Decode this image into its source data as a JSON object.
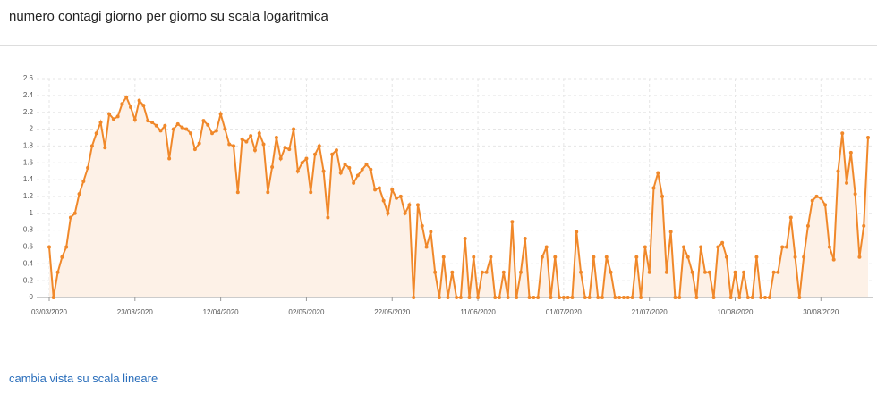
{
  "header": {
    "title": "numero contagi giorno per giorno su scala logaritmica"
  },
  "chart_data": {
    "type": "line",
    "categories": [
      "03/03/2020",
      null,
      null,
      null,
      null,
      null,
      null,
      null,
      null,
      null,
      null,
      null,
      null,
      null,
      null,
      null,
      null,
      null,
      null,
      null,
      "23/03/2020",
      null,
      null,
      null,
      null,
      null,
      null,
      null,
      null,
      null,
      null,
      null,
      null,
      null,
      null,
      null,
      null,
      null,
      null,
      null,
      "12/04/2020",
      null,
      null,
      null,
      null,
      null,
      null,
      null,
      null,
      null,
      null,
      null,
      null,
      null,
      null,
      null,
      null,
      null,
      null,
      null,
      "02/05/2020",
      null,
      null,
      null,
      null,
      null,
      null,
      null,
      null,
      null,
      null,
      null,
      null,
      null,
      null,
      null,
      null,
      null,
      null,
      null,
      "22/05/2020",
      null,
      null,
      null,
      null,
      null,
      null,
      null,
      null,
      null,
      null,
      null,
      null,
      null,
      null,
      null,
      null,
      null,
      null,
      null,
      "11/06/2020",
      null,
      null,
      null,
      null,
      null,
      null,
      null,
      null,
      null,
      null,
      null,
      null,
      null,
      null,
      null,
      null,
      null,
      null,
      null,
      "01/07/2020",
      null,
      null,
      null,
      null,
      null,
      null,
      null,
      null,
      null,
      null,
      null,
      null,
      null,
      null,
      null,
      null,
      null,
      null,
      null,
      "21/07/2020",
      null,
      null,
      null,
      null,
      null,
      null,
      null,
      null,
      null,
      null,
      null,
      null,
      null,
      null,
      null,
      null,
      null,
      null,
      null,
      "10/08/2020",
      null,
      null,
      null,
      null,
      null,
      null,
      null,
      null,
      null,
      null,
      null,
      null,
      null,
      null,
      null,
      null,
      null,
      null,
      null,
      "30/08/2020",
      null,
      null,
      null,
      null,
      null,
      null,
      null,
      null,
      null,
      null,
      null
    ],
    "values": [
      0.6,
      0,
      0.3,
      0.48,
      0.6,
      0.95,
      1.0,
      1.23,
      1.38,
      1.54,
      1.8,
      1.95,
      2.08,
      1.78,
      2.18,
      2.12,
      2.15,
      2.3,
      2.38,
      2.26,
      2.11,
      2.34,
      2.28,
      2.1,
      2.08,
      2.04,
      1.98,
      2.04,
      1.65,
      2.0,
      2.06,
      2.02,
      2.0,
      1.95,
      1.76,
      1.83,
      2.1,
      2.05,
      1.95,
      1.98,
      2.18,
      2.0,
      1.82,
      1.8,
      1.25,
      1.88,
      1.85,
      1.92,
      1.75,
      1.95,
      1.82,
      1.25,
      1.55,
      1.9,
      1.65,
      1.78,
      1.76,
      2.0,
      1.5,
      1.6,
      1.65,
      1.25,
      1.7,
      1.8,
      1.5,
      0.95,
      1.7,
      1.75,
      1.48,
      1.58,
      1.54,
      1.36,
      1.45,
      1.52,
      1.58,
      1.52,
      1.28,
      1.3,
      1.15,
      1.0,
      1.28,
      1.18,
      1.2,
      1.0,
      1.1,
      0,
      1.1,
      0.85,
      0.6,
      0.78,
      0.3,
      0,
      0.48,
      0,
      0.3,
      0,
      0,
      0.7,
      0,
      0.48,
      0,
      0.3,
      0.3,
      0.48,
      0,
      0,
      0.3,
      0,
      0.9,
      0,
      0.3,
      0.7,
      0,
      0,
      0,
      0.48,
      0.6,
      0,
      0.48,
      0,
      0,
      0,
      0,
      0.78,
      0.3,
      0,
      0,
      0.48,
      0,
      0,
      0.48,
      0.3,
      0,
      0,
      0,
      0,
      0,
      0.48,
      0,
      0.6,
      0.3,
      1.3,
      1.48,
      1.2,
      0.3,
      0.78,
      0,
      0,
      0.6,
      0.48,
      0.3,
      0,
      0.6,
      0.3,
      0.3,
      0,
      0.6,
      0.65,
      0.48,
      0,
      0.3,
      0,
      0.3,
      0,
      0,
      0.48,
      0,
      0,
      0,
      0.3,
      0.3,
      0.6,
      0.6,
      0.95,
      0.48,
      0,
      0.48,
      0.85,
      1.15,
      1.2,
      1.18,
      1.1,
      0.6,
      0.45,
      1.5,
      1.95,
      1.36,
      1.72,
      1.23,
      0.48,
      0.85,
      1.9
    ],
    "color": "#f0882a",
    "fill": "#fdf1e7",
    "ylim": [
      0,
      2.6
    ],
    "yticks": [
      0,
      0.2,
      0.4,
      0.6,
      0.8,
      1,
      1.2,
      1.4,
      1.6,
      1.8,
      2,
      2.2,
      2.4,
      2.6
    ],
    "grid": true
  },
  "link": {
    "text": "cambia vista su scala lineare"
  }
}
